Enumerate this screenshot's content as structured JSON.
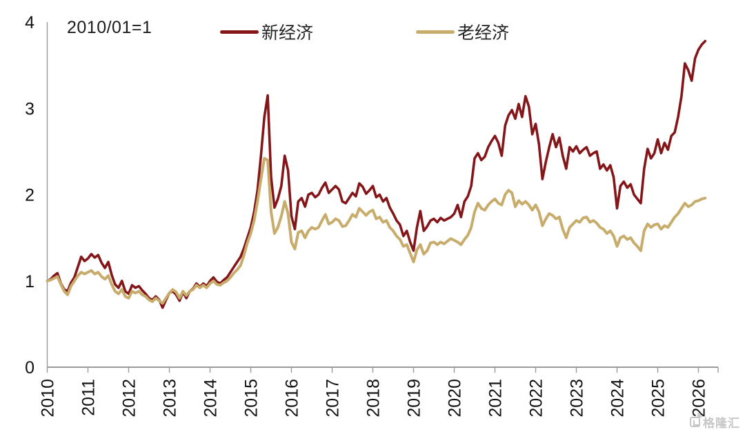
{
  "annotation": {
    "text": "2010/01=1"
  },
  "legend": [
    {
      "label": "新经济",
      "color": "#841619"
    },
    {
      "label": "老经济",
      "color": "#C7AC6C"
    }
  ],
  "watermark": {
    "text": "格隆汇"
  },
  "chart_data": {
    "type": "line",
    "title": "",
    "note": "2010/01=1",
    "x_start": "2010-01",
    "x_frequency": "monthly",
    "x_tick_labels": [
      "2010",
      "2011",
      "2012",
      "2013",
      "2014",
      "2015",
      "2016",
      "2017",
      "2018",
      "2019",
      "2020",
      "2021",
      "2022",
      "2023",
      "2024",
      "2025",
      "2026"
    ],
    "y_ticks": [
      0,
      1,
      2,
      3,
      4
    ],
    "ylim": [
      0,
      4
    ],
    "grid": false,
    "legend_position": "top",
    "axis_color": "#9a9a9a",
    "label_color": "#111111",
    "series": [
      {
        "name": "新经济",
        "color": "#841619",
        "stroke_width": 3.6,
        "values": [
          1.0,
          1.02,
          1.06,
          1.09,
          0.97,
          0.9,
          0.88,
          0.98,
          1.04,
          1.16,
          1.28,
          1.23,
          1.26,
          1.31,
          1.27,
          1.3,
          1.21,
          1.15,
          1.22,
          1.07,
          0.96,
          0.92,
          1.0,
          0.88,
          0.85,
          0.95,
          0.92,
          0.94,
          0.89,
          0.85,
          0.8,
          0.78,
          0.82,
          0.78,
          0.69,
          0.78,
          0.86,
          0.88,
          0.84,
          0.77,
          0.87,
          0.8,
          0.88,
          0.91,
          0.97,
          0.93,
          0.97,
          0.94,
          1.0,
          1.04,
          0.99,
          0.97,
          1.01,
          1.04,
          1.1,
          1.16,
          1.22,
          1.28,
          1.38,
          1.5,
          1.62,
          1.8,
          2.05,
          2.45,
          2.9,
          3.15,
          2.2,
          1.85,
          1.95,
          2.1,
          2.45,
          2.28,
          1.75,
          1.6,
          1.92,
          1.96,
          1.86,
          2.0,
          2.02,
          1.97,
          2.0,
          2.08,
          2.14,
          2.02,
          2.06,
          2.1,
          2.06,
          1.92,
          1.9,
          1.96,
          2.02,
          1.98,
          2.13,
          2.09,
          2.01,
          2.05,
          2.1,
          1.97,
          2.0,
          1.92,
          1.96,
          1.85,
          1.78,
          1.7,
          1.65,
          1.52,
          1.58,
          1.45,
          1.35,
          1.62,
          1.81,
          1.58,
          1.63,
          1.7,
          1.72,
          1.68,
          1.73,
          1.7,
          1.72,
          1.74,
          1.78,
          1.88,
          1.74,
          1.92,
          1.98,
          2.1,
          2.42,
          2.48,
          2.4,
          2.44,
          2.55,
          2.62,
          2.68,
          2.6,
          2.45,
          2.8,
          2.92,
          2.98,
          2.88,
          3.05,
          2.9,
          3.14,
          3.02,
          2.7,
          2.82,
          2.58,
          2.18,
          2.38,
          2.55,
          2.7,
          2.55,
          2.66,
          2.45,
          2.3,
          2.55,
          2.5,
          2.56,
          2.48,
          2.52,
          2.55,
          2.45,
          2.48,
          2.5,
          2.3,
          2.35,
          2.28,
          2.34,
          2.2,
          1.84,
          2.1,
          2.15,
          2.08,
          2.12,
          2.0,
          1.95,
          1.9,
          2.3,
          2.53,
          2.42,
          2.48,
          2.64,
          2.48,
          2.6,
          2.52,
          2.68,
          2.72,
          2.9,
          3.14,
          3.52,
          3.44,
          3.32,
          3.58,
          3.68,
          3.74,
          3.78
        ]
      },
      {
        "name": "老经济",
        "color": "#C7AC6C",
        "stroke_width": 4,
        "values": [
          1.0,
          1.01,
          1.03,
          1.05,
          0.96,
          0.88,
          0.84,
          0.94,
          1.0,
          1.06,
          1.1,
          1.08,
          1.1,
          1.12,
          1.08,
          1.1,
          1.05,
          1.02,
          1.06,
          0.96,
          0.88,
          0.85,
          0.9,
          0.82,
          0.8,
          0.88,
          0.86,
          0.88,
          0.84,
          0.82,
          0.78,
          0.76,
          0.8,
          0.77,
          0.74,
          0.8,
          0.86,
          0.9,
          0.87,
          0.8,
          0.88,
          0.83,
          0.88,
          0.9,
          0.95,
          0.92,
          0.95,
          0.92,
          0.97,
          1.0,
          0.96,
          0.95,
          0.98,
          1.0,
          1.04,
          1.09,
          1.13,
          1.18,
          1.3,
          1.44,
          1.55,
          1.7,
          1.92,
          2.18,
          2.42,
          2.4,
          1.8,
          1.55,
          1.62,
          1.75,
          1.92,
          1.78,
          1.45,
          1.37,
          1.56,
          1.58,
          1.5,
          1.58,
          1.62,
          1.6,
          1.62,
          1.7,
          1.77,
          1.66,
          1.68,
          1.72,
          1.7,
          1.63,
          1.64,
          1.7,
          1.77,
          1.74,
          1.84,
          1.8,
          1.76,
          1.8,
          1.82,
          1.72,
          1.74,
          1.68,
          1.7,
          1.62,
          1.58,
          1.52,
          1.48,
          1.4,
          1.42,
          1.32,
          1.22,
          1.36,
          1.42,
          1.31,
          1.35,
          1.44,
          1.45,
          1.42,
          1.45,
          1.43,
          1.46,
          1.49,
          1.47,
          1.45,
          1.42,
          1.48,
          1.53,
          1.62,
          1.8,
          1.9,
          1.84,
          1.82,
          1.88,
          1.92,
          1.95,
          1.9,
          1.88,
          2.0,
          2.05,
          2.02,
          1.86,
          1.93,
          1.89,
          1.92,
          1.88,
          1.82,
          1.88,
          1.8,
          1.64,
          1.72,
          1.78,
          1.76,
          1.72,
          1.74,
          1.6,
          1.5,
          1.62,
          1.66,
          1.7,
          1.68,
          1.73,
          1.74,
          1.68,
          1.7,
          1.67,
          1.62,
          1.6,
          1.55,
          1.58,
          1.52,
          1.4,
          1.5,
          1.52,
          1.48,
          1.5,
          1.44,
          1.4,
          1.35,
          1.58,
          1.66,
          1.62,
          1.65,
          1.66,
          1.6,
          1.64,
          1.62,
          1.68,
          1.74,
          1.78,
          1.84,
          1.9,
          1.86,
          1.88,
          1.92,
          1.93,
          1.95,
          1.96
        ]
      }
    ]
  }
}
